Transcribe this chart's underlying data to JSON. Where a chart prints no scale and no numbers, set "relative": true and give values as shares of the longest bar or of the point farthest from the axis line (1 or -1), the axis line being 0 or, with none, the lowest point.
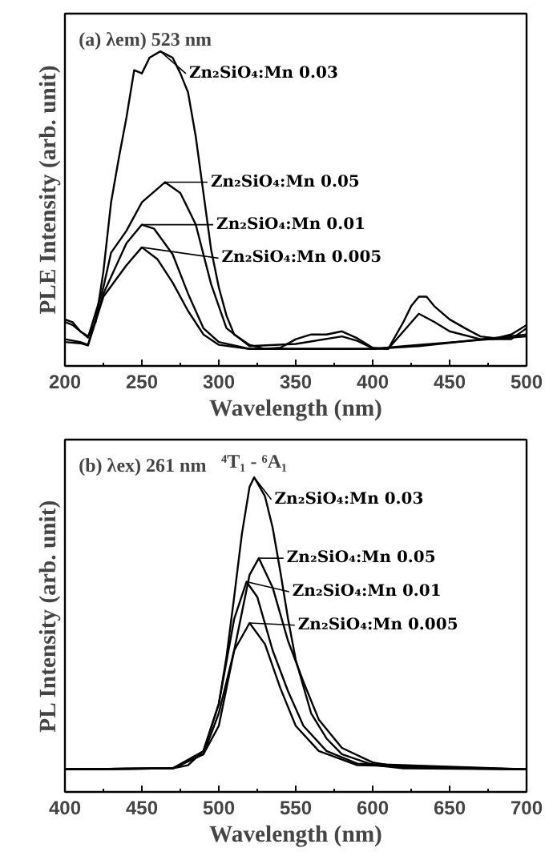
{
  "chart_data": [
    {
      "type": "line",
      "xlabel": "Wavelength (nm)",
      "ylabel": "PLE Intensity (arb. unit)",
      "xlim": [
        200,
        500
      ],
      "xticks": [
        200,
        250,
        300,
        350,
        400,
        450,
        500
      ],
      "relative": true,
      "tick_labels": "x",
      "legend": "top",
      "annotations": [
        "(a) λem) 523 nm"
      ],
      "series": [
        {
          "name": "Zn₂SiO₄:Mn 0.03",
          "color": "#000000",
          "x": [
            200,
            205,
            210,
            215,
            220,
            225,
            230,
            235,
            240,
            245,
            250,
            255,
            262,
            270,
            275,
            280,
            285,
            290,
            295,
            300,
            305,
            310,
            320,
            330,
            340,
            350,
            360,
            370,
            380,
            390,
            400,
            410,
            420,
            425,
            430,
            435,
            440,
            450,
            460,
            470,
            480,
            490,
            500
          ],
          "values": [
            0.148,
            0.139,
            0.11,
            0.094,
            0.14,
            0.3,
            0.52,
            0.66,
            0.79,
            0.94,
            0.93,
            0.98,
            1.0,
            0.98,
            0.93,
            0.87,
            0.73,
            0.55,
            0.37,
            0.25,
            0.16,
            0.1,
            0.067,
            0.054,
            0.058,
            0.085,
            0.1,
            0.1,
            0.11,
            0.088,
            0.058,
            0.054,
            0.14,
            0.19,
            0.22,
            0.22,
            0.19,
            0.148,
            0.12,
            0.094,
            0.088,
            0.1,
            0.13
          ]
        },
        {
          "name": "Zn₂SiO₄:Mn 0.05",
          "color": "#000000",
          "x": [
            200,
            205,
            215,
            225,
            230,
            240,
            250,
            265,
            275,
            285,
            295,
            305,
            320,
            350,
            380,
            390,
            400,
            410,
            420,
            430,
            440,
            450,
            470,
            490,
            500
          ],
          "values": [
            0.14,
            0.13,
            0.09,
            0.25,
            0.36,
            0.43,
            0.52,
            0.584,
            0.55,
            0.45,
            0.26,
            0.12,
            0.063,
            0.07,
            0.094,
            0.08,
            0.056,
            0.054,
            0.11,
            0.166,
            0.14,
            0.11,
            0.085,
            0.085,
            0.12
          ]
        },
        {
          "name": "Zn₂SiO₄:Mn 0.01",
          "color": "#000000",
          "x": [
            200,
            210,
            215,
            225,
            240,
            250,
            258,
            270,
            280,
            290,
            300,
            320,
            400,
            430,
            500
          ],
          "values": [
            0.085,
            0.076,
            0.067,
            0.23,
            0.39,
            0.449,
            0.436,
            0.355,
            0.23,
            0.12,
            0.076,
            0.054,
            0.054,
            0.067,
            0.094
          ]
        },
        {
          "name": "Zn₂SiO₄:Mn 0.005",
          "color": "#000000",
          "x": [
            200,
            210,
            215,
            225,
            240,
            250,
            260,
            270,
            280,
            290,
            300,
            320,
            400,
            430,
            500
          ],
          "values": [
            0.076,
            0.072,
            0.065,
            0.22,
            0.32,
            0.377,
            0.34,
            0.265,
            0.175,
            0.1,
            0.067,
            0.054,
            0.054,
            0.063,
            0.1
          ]
        }
      ]
    },
    {
      "type": "line",
      "xlabel": "Wavelength (nm)",
      "ylabel": "PL Intensity (arb. unit)",
      "xlim": [
        400,
        700
      ],
      "xticks": [
        400,
        450,
        500,
        550,
        600,
        650,
        700
      ],
      "relative": true,
      "tick_labels": "x",
      "legend": "top right",
      "annotations": [
        "(b) λex) 261 nm",
        {
          "text": "⁴T₁ - ⁶A₁",
          "x": 523,
          "y": 1.0
        }
      ],
      "series": [
        {
          "name": "Zn₂SiO₄:Mn 0.03",
          "color": "#000000",
          "x": [
            400,
            470,
            480,
            490,
            500,
            505,
            510,
            515,
            520,
            523,
            530,
            535,
            540,
            545,
            550,
            560,
            570,
            580,
            600,
            620,
            700
          ],
          "values": [
            0.072,
            0.075,
            0.085,
            0.13,
            0.28,
            0.43,
            0.62,
            0.82,
            0.97,
            1.0,
            0.94,
            0.84,
            0.7,
            0.55,
            0.42,
            0.25,
            0.17,
            0.12,
            0.086,
            0.075,
            0.072
          ]
        },
        {
          "name": "Zn₂SiO₄:Mn 0.05",
          "color": "#000000",
          "x": [
            400,
            470,
            490,
            500,
            510,
            520,
            526,
            535,
            545,
            555,
            565,
            580,
            600,
            620,
            700
          ],
          "values": [
            0.072,
            0.075,
            0.12,
            0.21,
            0.45,
            0.69,
            0.743,
            0.65,
            0.48,
            0.35,
            0.23,
            0.14,
            0.094,
            0.078,
            0.072
          ]
        },
        {
          "name": "Zn₂SiO₄:Mn 0.01",
          "color": "#000000",
          "x": [
            400,
            470,
            490,
            500,
            510,
            518,
            525,
            535,
            545,
            555,
            570,
            590,
            700
          ],
          "values": [
            0.072,
            0.075,
            0.13,
            0.28,
            0.55,
            0.668,
            0.62,
            0.45,
            0.32,
            0.21,
            0.13,
            0.09,
            0.072
          ]
        },
        {
          "name": "Zn₂SiO₄:Mn 0.005",
          "color": "#000000",
          "x": [
            400,
            470,
            490,
            500,
            510,
            520,
            530,
            540,
            550,
            565,
            590,
            700
          ],
          "values": [
            0.072,
            0.075,
            0.12,
            0.25,
            0.45,
            0.537,
            0.47,
            0.33,
            0.21,
            0.13,
            0.085,
            0.072
          ]
        }
      ]
    }
  ]
}
